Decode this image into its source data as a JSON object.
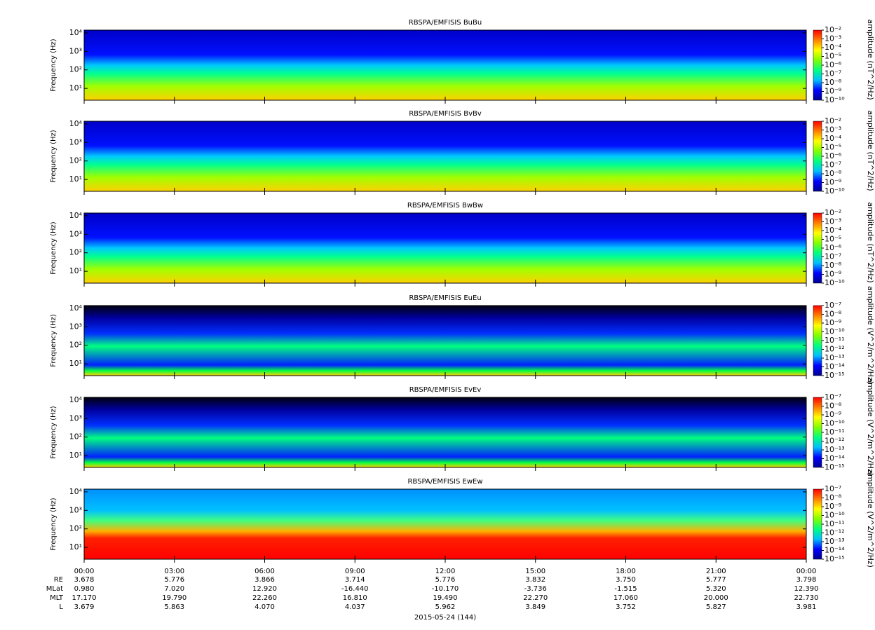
{
  "chart_data": [
    {
      "type": "spectrogram",
      "title": "RBSPA/EMFISIS  BuBu",
      "ylabel": "Frequency (Hz)",
      "ylog": true,
      "ylim": [
        2.3,
        14000
      ],
      "yticks": [
        {
          "value": 10,
          "label": "10¹"
        },
        {
          "value": 100,
          "label": "10²"
        },
        {
          "value": 1000,
          "label": "10³"
        },
        {
          "value": 10000,
          "label": "10⁴"
        }
      ],
      "clabel": "amplitude (nT^2/Hz)",
      "clim": [
        1e-10,
        0.01
      ],
      "cticks": [
        {
          "value": 0.01,
          "label": "10⁻²"
        },
        {
          "value": 0.001,
          "label": "10⁻³"
        },
        {
          "value": 0.0001,
          "label": "10⁻⁴"
        },
        {
          "value": 1e-05,
          "label": "10⁻⁵"
        },
        {
          "value": 1e-06,
          "label": "10⁻⁶"
        },
        {
          "value": 1e-07,
          "label": "10⁻⁷"
        },
        {
          "value": 1e-08,
          "label": "10⁻⁸"
        },
        {
          "value": 1e-09,
          "label": "10⁻⁹"
        },
        {
          "value": 1e-10,
          "label": "10⁻¹⁰"
        }
      ],
      "colormap": [
        "#00008f",
        "#0000ff",
        "#00bfff",
        "#00ff80",
        "#80ff00",
        "#ffff00",
        "#ff8000",
        "#ff0000"
      ]
    },
    {
      "type": "spectrogram",
      "title": "RBSPA/EMFISIS  BvBv",
      "ylabel": "Frequency (Hz)",
      "ylog": true,
      "ylim": [
        2.3,
        14000
      ],
      "yticks": [
        {
          "value": 10,
          "label": "10¹"
        },
        {
          "value": 100,
          "label": "10²"
        },
        {
          "value": 1000,
          "label": "10³"
        },
        {
          "value": 10000,
          "label": "10⁴"
        }
      ],
      "clabel": "amplitude (nT^2/Hz)",
      "clim": [
        1e-10,
        0.01
      ],
      "cticks": [
        {
          "value": 0.01,
          "label": "10⁻²"
        },
        {
          "value": 0.001,
          "label": "10⁻³"
        },
        {
          "value": 0.0001,
          "label": "10⁻⁴"
        },
        {
          "value": 1e-05,
          "label": "10⁻⁵"
        },
        {
          "value": 1e-06,
          "label": "10⁻⁶"
        },
        {
          "value": 1e-07,
          "label": "10⁻⁷"
        },
        {
          "value": 1e-08,
          "label": "10⁻⁸"
        },
        {
          "value": 1e-09,
          "label": "10⁻⁹"
        },
        {
          "value": 1e-10,
          "label": "10⁻¹⁰"
        }
      ],
      "colormap": [
        "#00008f",
        "#0000ff",
        "#00bfff",
        "#00ff80",
        "#80ff00",
        "#ffff00",
        "#ff8000",
        "#ff0000"
      ]
    },
    {
      "type": "spectrogram",
      "title": "RBSPA/EMFISIS  BwBw",
      "ylabel": "Frequency (Hz)",
      "ylog": true,
      "ylim": [
        2.3,
        14000
      ],
      "yticks": [
        {
          "value": 10,
          "label": "10¹"
        },
        {
          "value": 100,
          "label": "10²"
        },
        {
          "value": 1000,
          "label": "10³"
        },
        {
          "value": 10000,
          "label": "10⁴"
        }
      ],
      "clabel": "amplitude (nT^2/Hz)",
      "clim": [
        1e-10,
        0.01
      ],
      "cticks": [
        {
          "value": 0.01,
          "label": "10⁻²"
        },
        {
          "value": 0.001,
          "label": "10⁻³"
        },
        {
          "value": 0.0001,
          "label": "10⁻⁴"
        },
        {
          "value": 1e-05,
          "label": "10⁻⁵"
        },
        {
          "value": 1e-06,
          "label": "10⁻⁶"
        },
        {
          "value": 1e-07,
          "label": "10⁻⁷"
        },
        {
          "value": 1e-08,
          "label": "10⁻⁸"
        },
        {
          "value": 1e-09,
          "label": "10⁻⁹"
        },
        {
          "value": 1e-10,
          "label": "10⁻¹⁰"
        }
      ],
      "colormap": [
        "#00008f",
        "#0000ff",
        "#00bfff",
        "#00ff80",
        "#80ff00",
        "#ffff00",
        "#ff8000",
        "#ff0000"
      ]
    },
    {
      "type": "spectrogram",
      "title": "RBSPA/EMFISIS  EuEu",
      "ylabel": "Frequency (Hz)",
      "ylog": true,
      "ylim": [
        2.3,
        14000
      ],
      "yticks": [
        {
          "value": 10,
          "label": "10¹"
        },
        {
          "value": 100,
          "label": "10²"
        },
        {
          "value": 1000,
          "label": "10³"
        },
        {
          "value": 10000,
          "label": "10⁴"
        }
      ],
      "clabel": "amplitude (V^2/m^2/Hz)",
      "clim": [
        1e-15,
        1e-07
      ],
      "cticks": [
        {
          "value": 1e-07,
          "label": "10⁻⁷"
        },
        {
          "value": 1e-08,
          "label": "10⁻⁸"
        },
        {
          "value": 1e-09,
          "label": "10⁻⁹"
        },
        {
          "value": 1e-10,
          "label": "10⁻¹⁰"
        },
        {
          "value": 1e-11,
          "label": "10⁻¹¹"
        },
        {
          "value": 1e-12,
          "label": "10⁻¹²"
        },
        {
          "value": 1e-13,
          "label": "10⁻¹³"
        },
        {
          "value": 1e-14,
          "label": "10⁻¹⁴"
        },
        {
          "value": 1e-15,
          "label": "10⁻¹⁵"
        }
      ],
      "colormap": [
        "#00008f",
        "#0000ff",
        "#00bfff",
        "#00ff80",
        "#80ff00",
        "#ffff00",
        "#ff8000",
        "#ff0000"
      ]
    },
    {
      "type": "spectrogram",
      "title": "RBSPA/EMFISIS  EvEv",
      "ylabel": "Frequency (Hz)",
      "ylog": true,
      "ylim": [
        2.3,
        14000
      ],
      "yticks": [
        {
          "value": 10,
          "label": "10¹"
        },
        {
          "value": 100,
          "label": "10²"
        },
        {
          "value": 1000,
          "label": "10³"
        },
        {
          "value": 10000,
          "label": "10⁴"
        }
      ],
      "clabel": "amplitude (V^2/m^2/Hz)",
      "clim": [
        1e-15,
        1e-07
      ],
      "cticks": [
        {
          "value": 1e-07,
          "label": "10⁻⁷"
        },
        {
          "value": 1e-08,
          "label": "10⁻⁸"
        },
        {
          "value": 1e-09,
          "label": "10⁻⁹"
        },
        {
          "value": 1e-10,
          "label": "10⁻¹⁰"
        },
        {
          "value": 1e-11,
          "label": "10⁻¹¹"
        },
        {
          "value": 1e-12,
          "label": "10⁻¹²"
        },
        {
          "value": 1e-13,
          "label": "10⁻¹³"
        },
        {
          "value": 1e-14,
          "label": "10⁻¹⁴"
        },
        {
          "value": 1e-15,
          "label": "10⁻¹⁵"
        }
      ],
      "colormap": [
        "#00008f",
        "#0000ff",
        "#00bfff",
        "#00ff80",
        "#80ff00",
        "#ffff00",
        "#ff8000",
        "#ff0000"
      ]
    },
    {
      "type": "spectrogram",
      "title": "RBSPA/EMFISIS  EwEw",
      "ylabel": "Frequency (Hz)",
      "ylog": true,
      "ylim": [
        2.3,
        14000
      ],
      "yticks": [
        {
          "value": 10,
          "label": "10¹"
        },
        {
          "value": 100,
          "label": "10²"
        },
        {
          "value": 1000,
          "label": "10³"
        },
        {
          "value": 10000,
          "label": "10⁴"
        }
      ],
      "clabel": "amplitude (V^2/m^2/Hz)",
      "clim": [
        1e-15,
        1e-07
      ],
      "cticks": [
        {
          "value": 1e-07,
          "label": "10⁻⁷"
        },
        {
          "value": 1e-08,
          "label": "10⁻⁸"
        },
        {
          "value": 1e-09,
          "label": "10⁻⁹"
        },
        {
          "value": 1e-10,
          "label": "10⁻¹⁰"
        },
        {
          "value": 1e-11,
          "label": "10⁻¹¹"
        },
        {
          "value": 1e-12,
          "label": "10⁻¹²"
        },
        {
          "value": 1e-13,
          "label": "10⁻¹³"
        },
        {
          "value": 1e-14,
          "label": "10⁻¹⁴"
        },
        {
          "value": 1e-15,
          "label": "10⁻¹⁵"
        }
      ],
      "colormap": [
        "#00008f",
        "#0000ff",
        "#00bfff",
        "#00ff80",
        "#80ff00",
        "#ffff00",
        "#ff8000",
        "#ff0000"
      ],
      "xlim": [
        0,
        24
      ],
      "xticks": [
        {
          "value": 0,
          "label": "00:00"
        },
        {
          "value": 3,
          "label": "03:00"
        },
        {
          "value": 6,
          "label": "06:00"
        },
        {
          "value": 9,
          "label": "09:00"
        },
        {
          "value": 12,
          "label": "12:00"
        },
        {
          "value": 15,
          "label": "15:00"
        },
        {
          "value": 18,
          "label": "18:00"
        },
        {
          "value": 21,
          "label": "21:00"
        },
        {
          "value": 24,
          "label": "00:00"
        }
      ],
      "xlabel": "2015-05-24 (144)",
      "ephemeris": [
        {
          "label": "RE",
          "values": [
            "3.678",
            "5.776",
            "3.866",
            "3.714",
            "5.776",
            "3.832",
            "3.750",
            "5.777",
            "3.798"
          ]
        },
        {
          "label": "MLat",
          "values": [
            "0.980",
            "7.020",
            "12.920",
            "-16.440",
            "-10.170",
            "-3.736",
            "-1.515",
            "5.320",
            "12.390"
          ]
        },
        {
          "label": "MLT",
          "values": [
            "17.170",
            "19.790",
            "22.260",
            "16.810",
            "19.490",
            "22.270",
            "17.060",
            "20.000",
            "22.730"
          ]
        },
        {
          "label": "L",
          "values": [
            "3.679",
            "5.863",
            "4.070",
            "4.037",
            "5.962",
            "3.849",
            "3.752",
            "5.827",
            "3.981"
          ]
        }
      ]
    }
  ]
}
